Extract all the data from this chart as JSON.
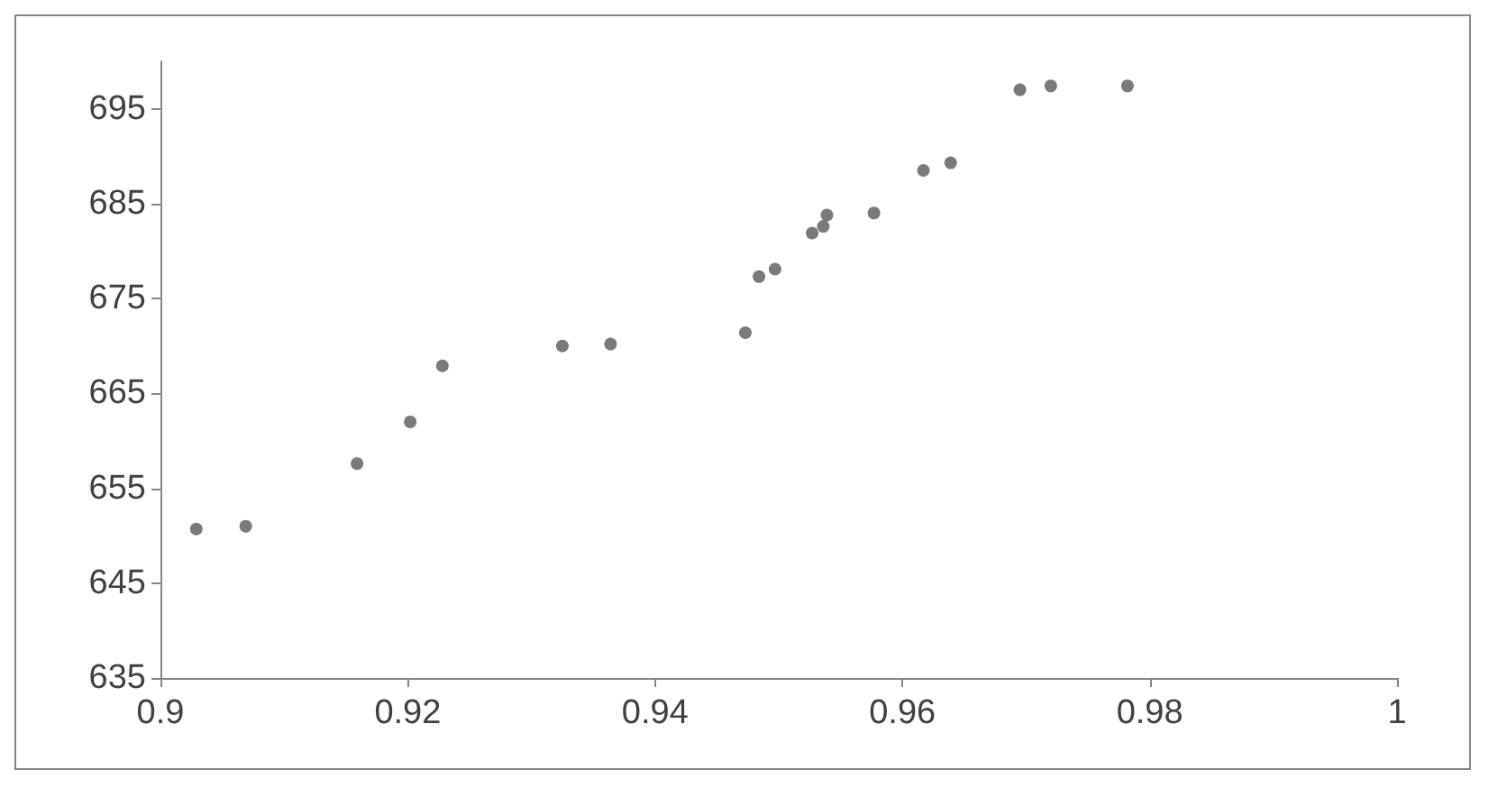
{
  "chart_data": {
    "type": "scatter",
    "x": [
      0.9029,
      0.9069,
      0.9159,
      0.9202,
      0.9228,
      0.9325,
      0.9364,
      0.9473,
      0.9484,
      0.9497,
      0.9527,
      0.9536,
      0.9539,
      0.9577,
      0.9617,
      0.9639,
      0.9695,
      0.972,
      0.9782
    ],
    "values": [
      650.7,
      651,
      657.6,
      662,
      667.9,
      670,
      670.2,
      671.4,
      677.3,
      678.1,
      681.9,
      682.6,
      683.8,
      684,
      688.5,
      689.3,
      697,
      697.4,
      697.4
    ],
    "color": "#595959",
    "marker": "circle",
    "grid": false,
    "xlim": [
      0.9,
      1
    ],
    "xticks": [
      0.9,
      0.92,
      0.94,
      0.96,
      0.98,
      1
    ],
    "ylim": [
      635,
      700
    ],
    "yticks": [
      635,
      645,
      655,
      665,
      675,
      685,
      695
    ]
  }
}
